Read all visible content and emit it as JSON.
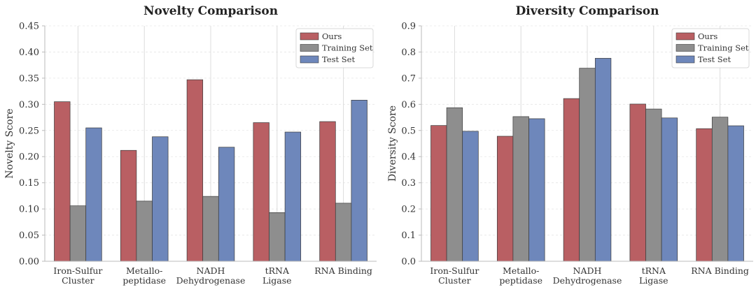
{
  "colors": {
    "Ours": "#b95f63",
    "Training Set": "#8e8e8e",
    "Test Set": "#6e87bb"
  },
  "chart_data": [
    {
      "type": "bar",
      "title": "Novelty Comparison",
      "xlabel": "",
      "ylabel": "Novelty Score",
      "ylim": [
        0,
        0.45
      ],
      "yticks": [
        "0.00",
        "0.05",
        "0.10",
        "0.15",
        "0.20",
        "0.25",
        "0.30",
        "0.35",
        "0.40",
        "0.45"
      ],
      "categories": [
        [
          "Iron-Sulfur",
          "Cluster"
        ],
        [
          "Metallo-",
          "peptidase"
        ],
        [
          "NADH",
          "Dehydrogenase"
        ],
        [
          "tRNA",
          "Ligase"
        ],
        [
          "RNA Binding"
        ]
      ],
      "series": [
        {
          "name": "Ours",
          "values": [
            0.305,
            0.212,
            0.347,
            0.265,
            0.267
          ]
        },
        {
          "name": "Training Set",
          "values": [
            0.106,
            0.115,
            0.124,
            0.093,
            0.111
          ]
        },
        {
          "name": "Test Set",
          "values": [
            0.255,
            0.238,
            0.218,
            0.247,
            0.308
          ]
        }
      ],
      "legend_position": "top-right",
      "grid": "x-at-categories"
    },
    {
      "type": "bar",
      "title": "Diversity Comparison",
      "xlabel": "",
      "ylabel": "Diversity Score",
      "ylim": [
        0,
        0.9
      ],
      "yticks": [
        "0.0",
        "0.1",
        "0.2",
        "0.3",
        "0.4",
        "0.5",
        "0.6",
        "0.7",
        "0.8",
        "0.9"
      ],
      "categories": [
        [
          "Iron-Sulfur",
          "Cluster"
        ],
        [
          "Metallo-",
          "peptidase"
        ],
        [
          "NADH",
          "Dehydrogenase"
        ],
        [
          "tRNA",
          "Ligase"
        ],
        [
          "RNA Binding"
        ]
      ],
      "series": [
        {
          "name": "Ours",
          "values": [
            0.519,
            0.478,
            0.622,
            0.601,
            0.507
          ]
        },
        {
          "name": "Training Set",
          "values": [
            0.587,
            0.553,
            0.738,
            0.582,
            0.551
          ]
        },
        {
          "name": "Test Set",
          "values": [
            0.497,
            0.545,
            0.776,
            0.548,
            0.518
          ]
        }
      ],
      "legend_position": "top-right",
      "grid": "x-at-categories"
    }
  ]
}
